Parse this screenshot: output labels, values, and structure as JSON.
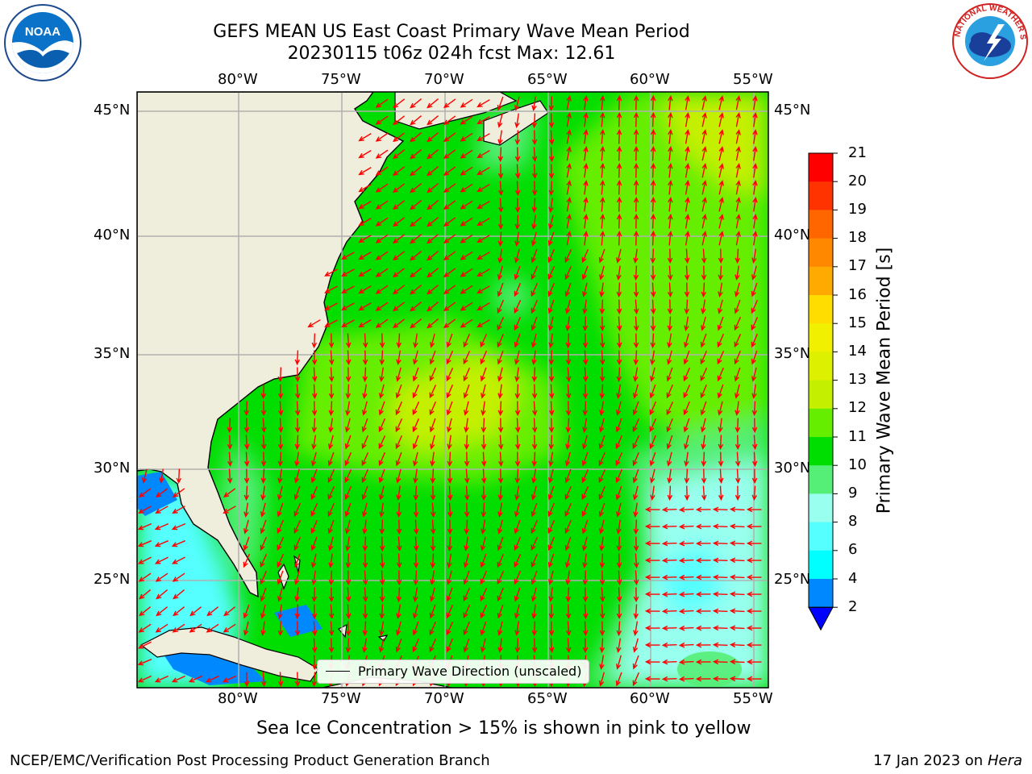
{
  "title_line1": "GEFS MEAN US East Coast Primary Wave Mean Period",
  "title_line2": "20230115 t06z 024h fcst   Max: 12.61",
  "map": {
    "lon_ticks": [
      "80°W",
      "75°W",
      "70°W",
      "65°W",
      "60°W",
      "55°W"
    ],
    "lat_ticks": [
      "45°N",
      "40°N",
      "35°N",
      "30°N",
      "25°N"
    ]
  },
  "colorbar": {
    "label": "Primary Wave Mean Period [s]",
    "ticks": [
      "21",
      "20",
      "19",
      "18",
      "17",
      "16",
      "15",
      "14",
      "13",
      "12",
      "11",
      "10",
      "9",
      "8",
      "6",
      "4",
      "2"
    ],
    "colors": [
      "#ff0000",
      "#ff3300",
      "#ff6600",
      "#ff8800",
      "#ffaa00",
      "#ffdd00",
      "#f0f000",
      "#ddf000",
      "#c4f000",
      "#66ee00",
      "#00dd00",
      "#55ee77",
      "#99ffee",
      "#55ffff",
      "#00ffff",
      "#0088ff",
      "#0000ff"
    ]
  },
  "legend_text": "Primary Wave Direction (unscaled)",
  "footer": {
    "note": "Sea Ice Concentration > 15% is shown in pink to yellow",
    "credit": "NCEP/EMC/Verification Post Processing Product Generation Branch",
    "date": "17 Jan 2023 on",
    "host": "Hera"
  },
  "colors": {
    "land": "#efeddb",
    "arrow": "#ff0000",
    "grid": "#b0b0b0"
  },
  "logos": [
    "noaa-logo",
    "nws-logo"
  ]
}
